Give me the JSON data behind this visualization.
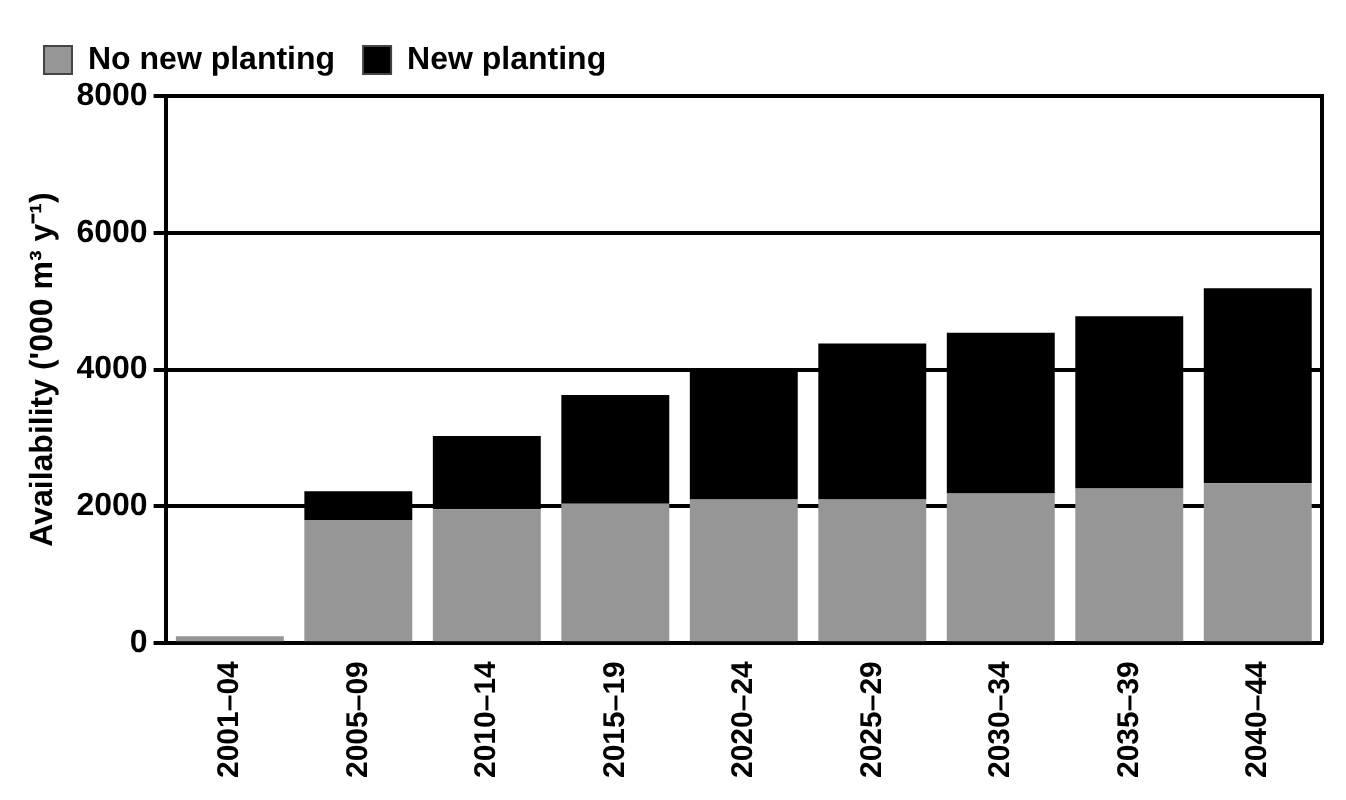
{
  "chart_data": {
    "type": "bar",
    "ylabel": "Availability ('000 m³ y⁻¹)",
    "categories": [
      "2001–04",
      "2005–09",
      "2010–14",
      "2015–19",
      "2020–24",
      "2025–29",
      "2030–34",
      "2035–39",
      "2040–44"
    ],
    "series": [
      {
        "name": "No new planting",
        "color": "#969696",
        "values": [
          100,
          1800,
          1960,
          2040,
          2100,
          2100,
          2190,
          2260,
          2340
        ]
      },
      {
        "name": "New planting",
        "color": "#000000",
        "values": [
          null,
          420,
          1070,
          1590,
          1920,
          2280,
          2350,
          2520,
          2850
        ]
      }
    ],
    "stacked": true,
    "ylim": [
      0,
      8000
    ],
    "yticks": [
      0,
      2000,
      4000,
      6000,
      8000
    ],
    "grid": "y",
    "legend": "top left"
  }
}
